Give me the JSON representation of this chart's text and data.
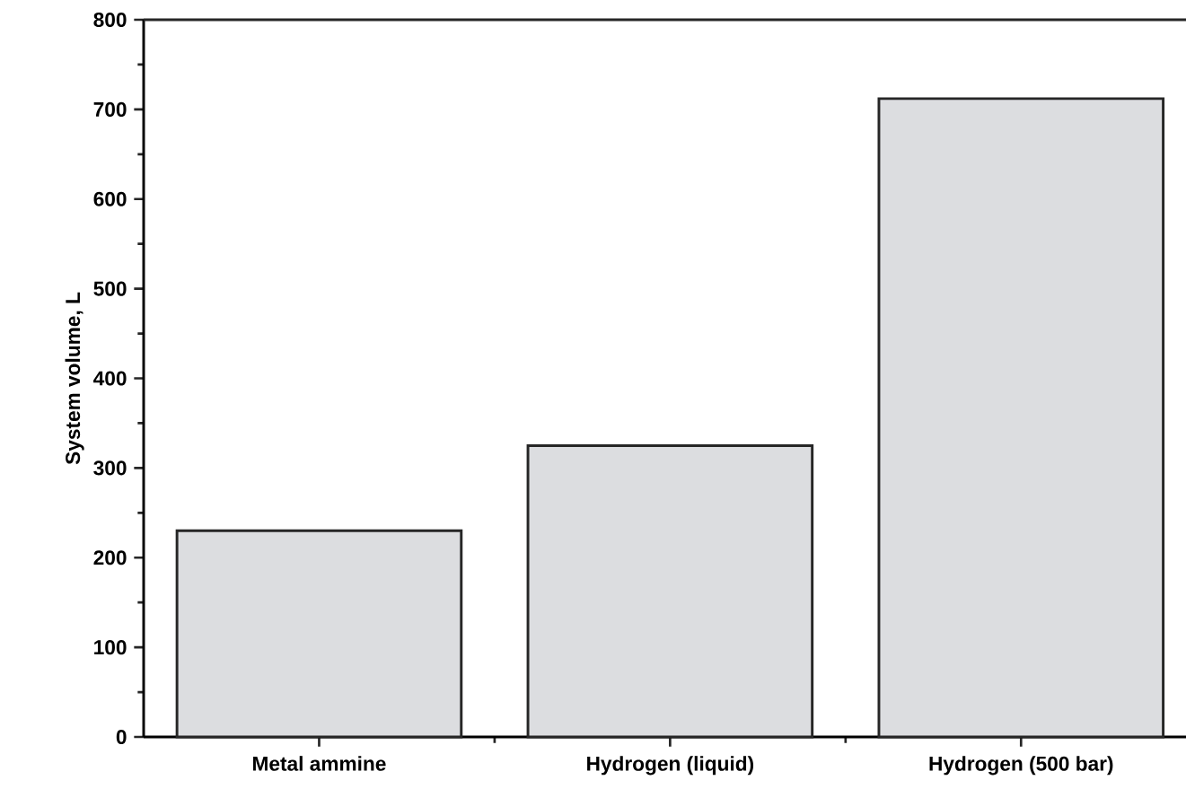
{
  "chart_data": {
    "type": "bar",
    "ylabel": "System volume, L",
    "categories": [
      "Metal ammine",
      "Hydrogen (liquid)",
      "Hydrogen (500 bar)"
    ],
    "values": [
      230,
      325,
      712
    ],
    "color": "#dcdde0",
    "ylim": [
      0,
      800
    ],
    "yticks": [
      0,
      100,
      200,
      300,
      400,
      500,
      600,
      700,
      800
    ]
  }
}
